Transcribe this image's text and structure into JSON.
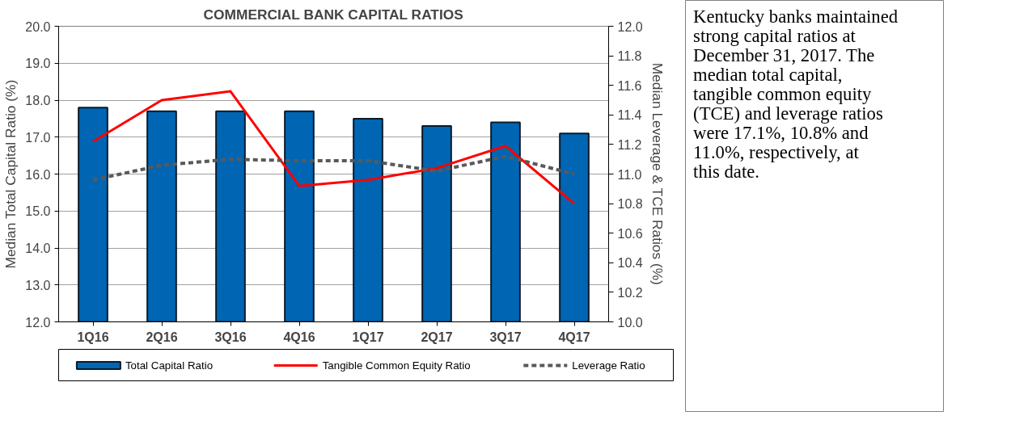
{
  "chart_data": {
    "type": "bar",
    "title": "COMMERCIAL BANK CAPITAL RATIOS",
    "categories": [
      "1Q16",
      "2Q16",
      "3Q16",
      "4Q16",
      "1Q17",
      "2Q17",
      "3Q17",
      "4Q17"
    ],
    "ylabel": "Median Total Capital Ratio (%)",
    "y2label": "Median Leverage & TCE Ratios (%)",
    "ylim": [
      12,
      20
    ],
    "yticks": [
      {
        "value": 12,
        "label": "12.0"
      },
      {
        "value": 13,
        "label": "13.0"
      },
      {
        "value": 14,
        "label": "14.0"
      },
      {
        "value": 15,
        "label": "15.0"
      },
      {
        "value": 16,
        "label": "16.0"
      },
      {
        "value": 17,
        "label": "17.0"
      },
      {
        "value": 18,
        "label": "18.0"
      },
      {
        "value": 19,
        "label": "19.0"
      },
      {
        "value": 20,
        "label": "20.0"
      }
    ],
    "y2lim": [
      10,
      12
    ],
    "y2ticks": [
      {
        "value": 10,
        "label": "10.0"
      },
      10.2,
      10.4,
      10.6,
      10.8,
      {
        "value": 11,
        "label": "11.0"
      },
      11.2,
      11.4,
      11.6,
      11.8,
      {
        "value": 12,
        "label": "12.0"
      }
    ],
    "grid": "y",
    "legend": "bottom",
    "series": [
      {
        "name": "Total Capital Ratio",
        "color": "#0066b3",
        "values": [
          17.8,
          17.7,
          17.7,
          17.7,
          17.5,
          17.3,
          17.4,
          17.1
        ]
      },
      {
        "name": "Tangible Common Equity Ratio",
        "type": "line",
        "axis": "y2",
        "color": "#ff0000",
        "line_style": "solid",
        "values": [
          11.22,
          11.5,
          11.56,
          10.92,
          10.96,
          11.04,
          11.19,
          10.8
        ]
      },
      {
        "name": "Leverage Ratio",
        "type": "line",
        "axis": "y2",
        "color": "#595959",
        "line_style": "dashed",
        "values": [
          10.96,
          11.06,
          11.1,
          11.09,
          11.09,
          11.02,
          11.12,
          11.0
        ]
      }
    ],
    "annotations": [
      "Kentucky banks maintained strong capital ratios at December 31, 2017. The median total capital, tangible common equity (TCE) and leverage ratios were 17.1%, 10.8% and 11.0%, respectively, at this date."
    ]
  }
}
